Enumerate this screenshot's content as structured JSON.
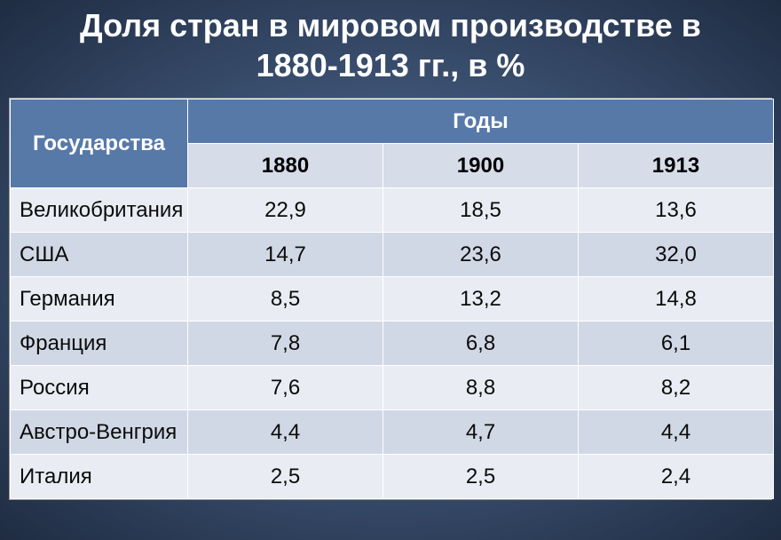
{
  "title": "Доля стран в мировом производстве в 1880-1913 гг., в %",
  "title_fontsize": 36,
  "title_color": "#ffffff",
  "background_gradient_center": "#5d7aa8",
  "background_gradient_edge": "#1f2c42",
  "table": {
    "type": "table",
    "header_bg": "#5679a8",
    "header_text_color": "#ffffff",
    "subheader_bg": "#d6dde8",
    "subheader_text_color": "#000000",
    "row_bg_even": "#e9edf3",
    "row_bg_odd": "#d1d8e5",
    "cell_text_color": "#0b0b0b",
    "border_color": "#ffffff",
    "col_country_width": 200,
    "col_year_width": 220,
    "header_font_weight": "bold",
    "value_fontsize": 24,
    "header_fontsize": 24,
    "country_fontsize": 24,
    "header_countries": "Государства",
    "header_years": "Годы",
    "years": [
      "1880",
      "1900",
      "1913"
    ],
    "rows": [
      {
        "country": "Великобритания",
        "values": [
          "22,9",
          "18,5",
          "13,6"
        ]
      },
      {
        "country": "США",
        "values": [
          "14,7",
          "23,6",
          "32,0"
        ]
      },
      {
        "country": "Германия",
        "values": [
          "8,5",
          "13,2",
          "14,8"
        ]
      },
      {
        "country": "Франция",
        "values": [
          "7,8",
          "6,8",
          "6,1"
        ]
      },
      {
        "country": "Россия",
        "values": [
          "7,6",
          "8,8",
          "8,2"
        ]
      },
      {
        "country": "Австро-Венгрия",
        "values": [
          "4,4",
          "4,7",
          "4,4"
        ]
      },
      {
        "country": "Италия",
        "values": [
          "2,5",
          "2,5",
          "2,4"
        ]
      }
    ]
  }
}
